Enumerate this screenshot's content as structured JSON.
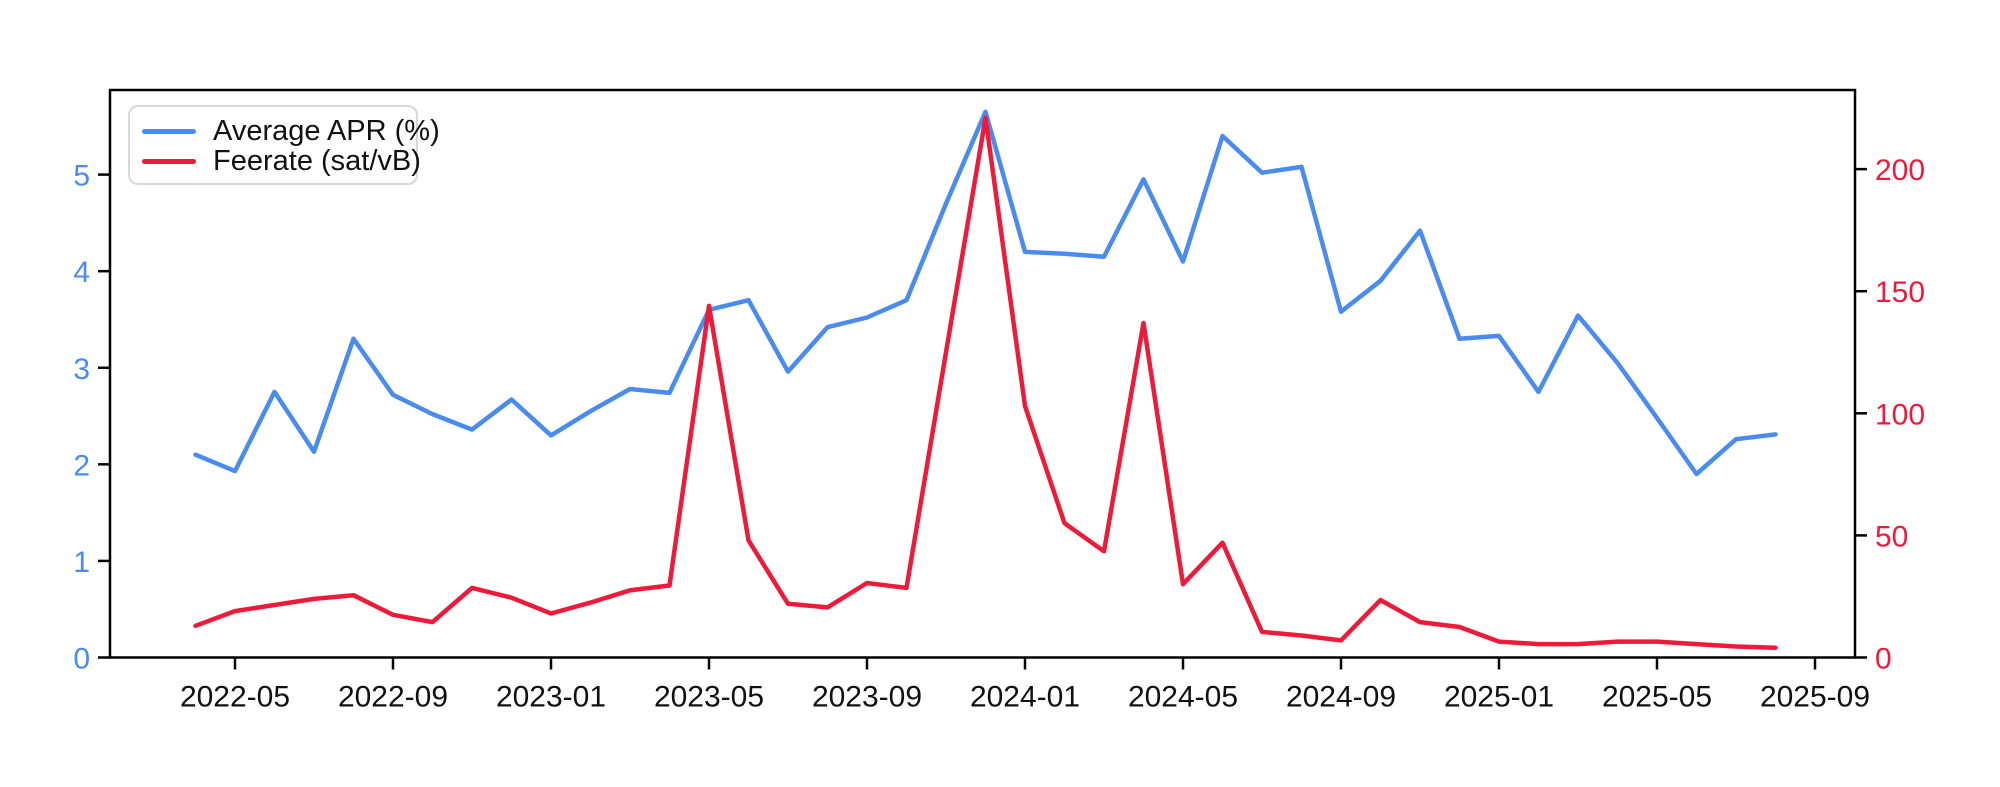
{
  "chart_data": {
    "type": "line",
    "title": "",
    "xlabel": "",
    "ylabel_left": "",
    "ylabel_right": "",
    "grid": false,
    "legend_position": "upper-left",
    "x": [
      "2022-04",
      "2022-05",
      "2022-06",
      "2022-07",
      "2022-08",
      "2022-09",
      "2022-10",
      "2022-11",
      "2022-12",
      "2023-01",
      "2023-02",
      "2023-03",
      "2023-04",
      "2023-05",
      "2023-06",
      "2023-07",
      "2023-08",
      "2023-09",
      "2023-10",
      "2023-11",
      "2023-12",
      "2024-01",
      "2024-02",
      "2024-03",
      "2024-04",
      "2024-05",
      "2024-06",
      "2024-07",
      "2024-08",
      "2024-09",
      "2024-10",
      "2024-11",
      "2024-12",
      "2025-01",
      "2025-02",
      "2025-03",
      "2025-04",
      "2025-05",
      "2025-06",
      "2025-07",
      "2025-08"
    ],
    "series": [
      {
        "name": "Average APR (%)",
        "axis": "left",
        "color": "#4a8bf0",
        "values": [
          2.1,
          1.93,
          2.75,
          2.13,
          3.3,
          2.72,
          2.52,
          2.36,
          2.67,
          2.3,
          2.55,
          2.78,
          2.74,
          3.6,
          3.7,
          2.96,
          3.42,
          3.52,
          3.7,
          4.7,
          5.65,
          4.2,
          4.18,
          4.15,
          4.95,
          4.1,
          5.4,
          5.02,
          5.08,
          3.58,
          3.9,
          4.42,
          3.3,
          3.33,
          2.75,
          3.54,
          3.05,
          2.48,
          1.9,
          2.26,
          2.31
        ]
      },
      {
        "name": "Feerate (sat/vB)",
        "axis": "right",
        "color": "#ed1a3a",
        "values": [
          13,
          19,
          21.5,
          24,
          25.5,
          17.5,
          14.5,
          28.5,
          24.5,
          18,
          22.5,
          27.5,
          29.5,
          144,
          48,
          22,
          20.5,
          30.5,
          28.5,
          125,
          221,
          103,
          55,
          43.5,
          137,
          30,
          47,
          10.5,
          9,
          7,
          23.5,
          14.5,
          12.5,
          6.5,
          5.5,
          5.5,
          6.5,
          6.5,
          5.5,
          4.5,
          4
        ]
      }
    ],
    "x_tick_labels": [
      "2022-05",
      "2022-09",
      "2023-01",
      "2023-05",
      "2023-09",
      "2024-01",
      "2024-05",
      "2024-09",
      "2025-01",
      "2025-05",
      "2025-09"
    ],
    "left_axis": {
      "tick_labels": [
        "0",
        "1",
        "2",
        "3",
        "4",
        "5"
      ],
      "tick_values": [
        0,
        1,
        2,
        3,
        4,
        5
      ],
      "color": "#4a8bf0",
      "range": [
        0,
        5.876
      ]
    },
    "right_axis": {
      "tick_labels": [
        "0",
        "50",
        "100",
        "150",
        "200"
      ],
      "tick_values": [
        0,
        50,
        100,
        150,
        200
      ],
      "color": "#ed1a3a",
      "range": [
        0,
        232.4
      ]
    },
    "spine_color": "#000000"
  }
}
